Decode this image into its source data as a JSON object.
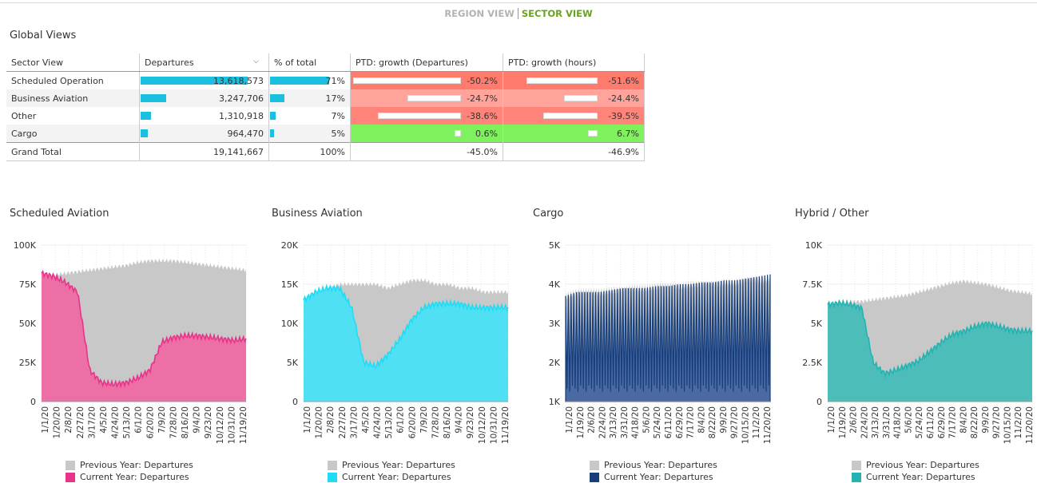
{
  "tabs": {
    "region": "REGION VIEW",
    "sector": "SECTOR VIEW"
  },
  "section_title": "Global Views",
  "table": {
    "headers": [
      "Sector View",
      "Departures",
      "% of total",
      "PTD: growth (Departures)",
      "PTD: growth (hours)"
    ],
    "rows": [
      {
        "name": "Scheduled Operation",
        "departures": "13,618,573",
        "dep_share": 0.71,
        "pct": "71%",
        "pct_value": 71,
        "g_dep": "-50.2%",
        "g_dep_value": -50.2,
        "g_hrs": "-51.6%",
        "g_hrs_value": -51.6,
        "color": "#ff7b6e"
      },
      {
        "name": "Business Aviation",
        "departures": "3,247,706",
        "dep_share": 0.17,
        "pct": "17%",
        "pct_value": 17,
        "g_dep": "-24.7%",
        "g_dep_value": -24.7,
        "g_hrs": "-24.4%",
        "g_hrs_value": -24.4,
        "color": "#ffa39b"
      },
      {
        "name": "Other",
        "departures": "1,310,918",
        "dep_share": 0.07,
        "pct": "7%",
        "pct_value": 7,
        "g_dep": "-38.6%",
        "g_dep_value": -38.6,
        "g_hrs": "-39.5%",
        "g_hrs_value": -39.5,
        "color": "#ff857a"
      },
      {
        "name": "Cargo",
        "departures": "964,470",
        "dep_share": 0.05,
        "pct": "5%",
        "pct_value": 5,
        "g_dep": "0.6%",
        "g_dep_value": 0.6,
        "g_hrs": "6.7%",
        "g_hrs_value": 6.7,
        "color": "#7ef15c"
      }
    ],
    "total": {
      "name": "Grand Total",
      "departures": "19,141,667",
      "pct": "100%",
      "g_dep": "-45.0%",
      "g_hrs": "-46.9%"
    }
  },
  "chart_data": [
    {
      "type": "area",
      "title": "Scheduled Aviation",
      "y_ticks": [
        "100K",
        "75K",
        "50K",
        "25K",
        "0"
      ],
      "ylim": [
        0,
        100000
      ],
      "x_ticks": [
        "1/1/20",
        "1/20/20",
        "2/8/20",
        "2/27/20",
        "3/17/20",
        "4/5/20",
        "4/24/20",
        "5/13/20",
        "6/1/20",
        "6/20/20",
        "7/9/20",
        "7/28/20",
        "8/16/20",
        "9/4/20",
        "9/23/20",
        "10/12/20",
        "10/31/20",
        "11/19/20"
      ],
      "colors": {
        "previous": "#c8c8c8",
        "current": "#e8338a",
        "current_fill": "#ec6fa6"
      },
      "series": [
        {
          "name": "Previous Year: Departures",
          "values": [
            80000,
            81000,
            82000,
            83000,
            84000,
            85000,
            86000,
            87000,
            89000,
            90000,
            90000,
            90000,
            89000,
            88000,
            87000,
            86000,
            85000,
            84000
          ]
        },
        {
          "name": "Current Year: Departures",
          "values": [
            82000,
            80000,
            76000,
            70000,
            20000,
            12000,
            11000,
            12000,
            15000,
            20000,
            38000,
            41000,
            42000,
            42000,
            41000,
            40000,
            39000,
            40000
          ]
        }
      ]
    },
    {
      "type": "area",
      "title": "Business Aviation",
      "y_ticks": [
        "20K",
        "15K",
        "10K",
        "5K",
        "0"
      ],
      "ylim": [
        0,
        20000
      ],
      "x_ticks": [
        "1/1/20",
        "1/20/20",
        "2/8/20",
        "2/27/20",
        "3/17/20",
        "4/5/20",
        "4/24/20",
        "5/13/20",
        "6/1/20",
        "6/20/20",
        "7/9/20",
        "7/28/20",
        "8/16/20",
        "9/4/20",
        "9/23/20",
        "10/12/20",
        "10/31/20",
        "11/19/20"
      ],
      "colors": {
        "previous": "#c8c8c8",
        "current": "#1fdcf5",
        "current_fill": "#4fe0f3"
      },
      "series": [
        {
          "name": "Previous Year: Departures",
          "values": [
            13000,
            14000,
            14500,
            15000,
            15000,
            15000,
            15000,
            14500,
            15000,
            15500,
            15500,
            15000,
            15000,
            14500,
            14500,
            14000,
            14000,
            14000
          ]
        },
        {
          "name": "Current Year: Departures",
          "values": [
            13000,
            14000,
            14500,
            14500,
            12000,
            5000,
            4500,
            6000,
            8000,
            10500,
            12000,
            12500,
            12500,
            12500,
            12000,
            12000,
            12000,
            12000
          ]
        }
      ]
    },
    {
      "type": "area",
      "title": "Cargo",
      "y_ticks": [
        "5K",
        "4K",
        "3K",
        "2K",
        "1K"
      ],
      "ylim": [
        1000,
        5000
      ],
      "x_ticks": [
        "1/1/20",
        "1/19/20",
        "2/6/20",
        "2/24/20",
        "3/13/20",
        "3/31/20",
        "4/18/20",
        "5/6/20",
        "5/24/20",
        "6/11/20",
        "6/29/20",
        "7/17/20",
        "8/4/20",
        "8/22/20",
        "9/9/20",
        "9/27/20",
        "10/15/20",
        "11/2/20",
        "11/20/20"
      ],
      "colors": {
        "previous": "#c8c8c8",
        "current": "#163e7a",
        "current_fill": "#4b6aa3"
      },
      "series": [
        {
          "name": "Previous Year: Departures",
          "values": [
            3700,
            3800,
            3800,
            3800,
            3850,
            3850,
            3900,
            3900,
            3950,
            3950,
            3950,
            4000,
            4000,
            4000,
            4050,
            4050,
            4100,
            4100,
            4150
          ]
        },
        {
          "name": "Current Year: Departures",
          "values": [
            3700,
            3800,
            3800,
            3800,
            3850,
            3900,
            3900,
            3900,
            3950,
            3950,
            4000,
            4000,
            4050,
            4050,
            4100,
            4100,
            4150,
            4200,
            4250
          ]
        }
      ]
    },
    {
      "type": "area",
      "title": "Hybrid / Other",
      "y_ticks": [
        "10K",
        "7.5K",
        "5K",
        "2.5K",
        "0"
      ],
      "ylim": [
        0,
        10000
      ],
      "x_ticks": [
        "1/1/20",
        "1/19/20",
        "2/6/20",
        "2/24/20",
        "3/13/20",
        "3/31/20",
        "4/18/20",
        "5/6/20",
        "5/24/20",
        "6/11/20",
        "6/29/20",
        "7/17/20",
        "8/4/20",
        "8/22/20",
        "9/9/20",
        "9/27/20",
        "10/15/20",
        "11/2/20",
        "11/20/20"
      ],
      "colors": {
        "previous": "#c8c8c8",
        "current": "#23b3b0",
        "current_fill": "#4cbdb9"
      },
      "series": [
        {
          "name": "Previous Year: Departures",
          "values": [
            6200,
            6300,
            6400,
            6400,
            6500,
            6600,
            6700,
            6800,
            7000,
            7200,
            7400,
            7600,
            7700,
            7600,
            7500,
            7300,
            7100,
            7000,
            6900
          ]
        },
        {
          "name": "Current Year: Departures",
          "values": [
            6200,
            6300,
            6200,
            6000,
            2500,
            1800,
            2000,
            2300,
            2600,
            3200,
            3800,
            4300,
            4500,
            4800,
            5000,
            4800,
            4600,
            4500,
            4500
          ]
        }
      ]
    }
  ]
}
